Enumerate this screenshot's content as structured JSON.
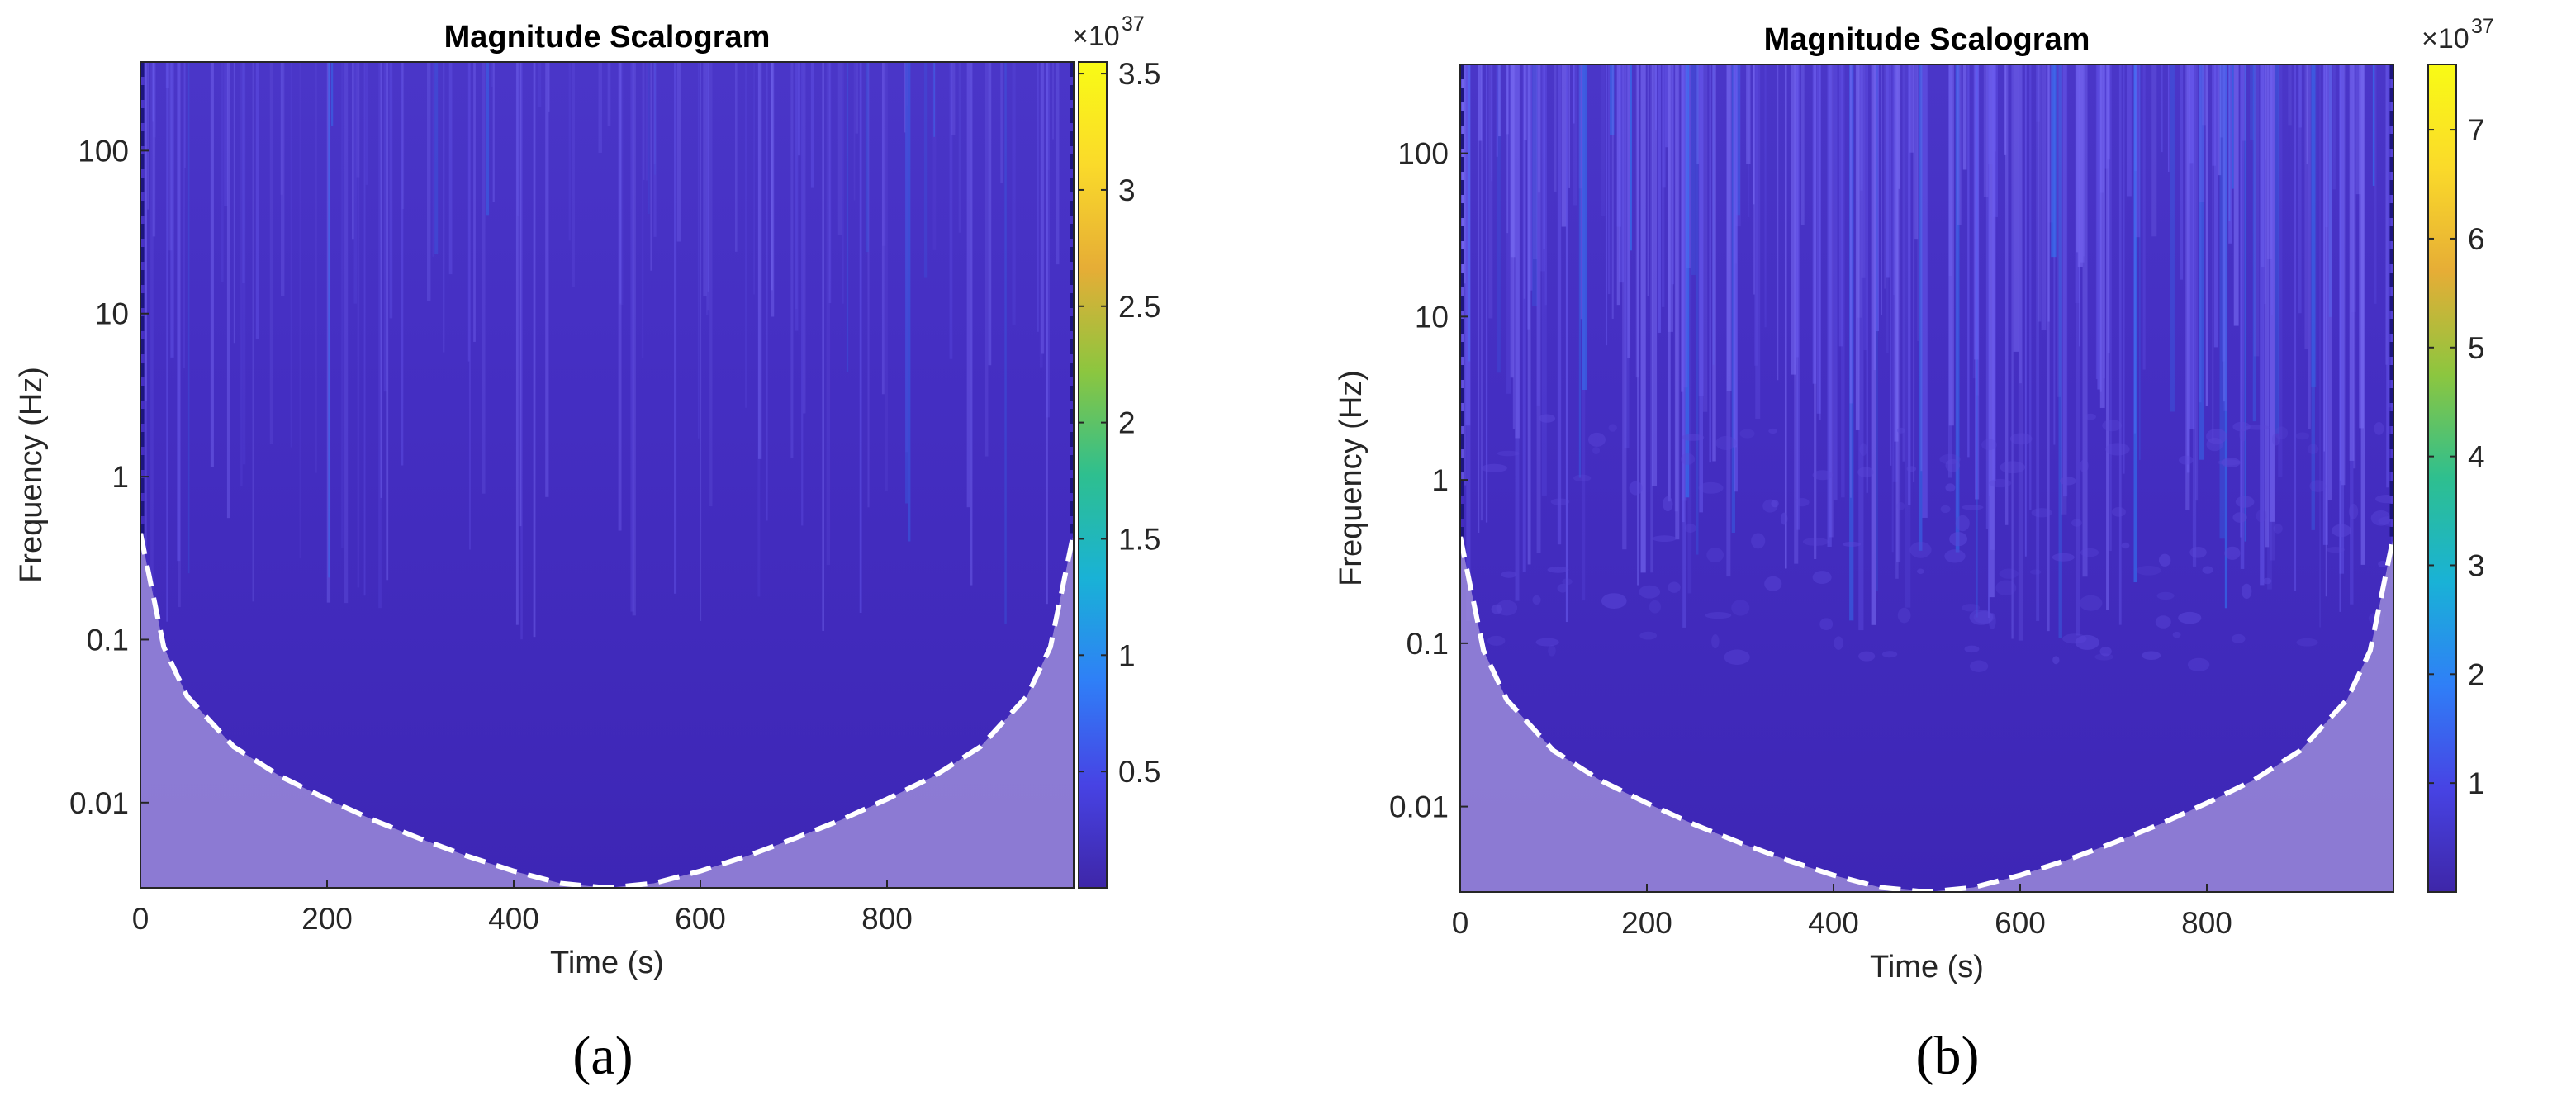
{
  "figure": {
    "background": "#ffffff"
  },
  "colormap": [
    "#3e26a8",
    "#4743e4",
    "#2f7ff7",
    "#19b2d6",
    "#2ebf8f",
    "#8cc63f",
    "#e6ad36",
    "#fada2a",
    "#f9fb15"
  ],
  "coi_color": "#ffffff",
  "chart_data": [
    {
      "type": "heatmap",
      "panel_label": "(a)",
      "title": "Magnitude Scalogram",
      "xlabel": "Time (s)",
      "ylabel": "Frequency (Hz)",
      "xlim": [
        0,
        1000
      ],
      "ylim": [
        0.003,
        350
      ],
      "yscale": "log",
      "xticks": [
        0,
        200,
        400,
        600,
        800
      ],
      "xtick_labels": [
        "0",
        "200",
        "400",
        "600",
        "800"
      ],
      "yticks": [
        0.01,
        0.1,
        1,
        10,
        100
      ],
      "ytick_labels": [
        "0.01",
        "0.1",
        "1",
        "10",
        "100"
      ],
      "colorbar": {
        "range": [
          0,
          3.55
        ],
        "ticks": [
          0.5,
          1,
          1.5,
          2,
          2.5,
          3,
          3.5
        ],
        "tick_labels": [
          "0.5",
          "1",
          "1.5",
          "2",
          "2.5",
          "3",
          "3.5"
        ],
        "multiplier_base": "×10",
        "multiplier_exp": "37"
      },
      "activity": 0.35,
      "cone_of_influence": {
        "time": [
          0,
          25,
          50,
          100,
          150,
          200,
          250,
          300,
          350,
          400,
          450,
          500,
          550,
          600,
          650,
          700,
          750,
          800,
          850,
          900,
          950,
          975,
          1000
        ],
        "frequency": [
          0.45,
          0.09,
          0.045,
          0.022,
          0.0145,
          0.0105,
          0.0078,
          0.006,
          0.0047,
          0.0038,
          0.0032,
          0.003,
          0.0032,
          0.0038,
          0.0047,
          0.006,
          0.0078,
          0.0105,
          0.0145,
          0.022,
          0.045,
          0.09,
          0.45
        ]
      }
    },
    {
      "type": "heatmap",
      "panel_label": "(b)",
      "title": "Magnitude Scalogram",
      "xlabel": "Time (s)",
      "ylabel": "Frequency (Hz)",
      "xlim": [
        0,
        1000
      ],
      "ylim": [
        0.003,
        350
      ],
      "yscale": "log",
      "xticks": [
        0,
        200,
        400,
        600,
        800
      ],
      "xtick_labels": [
        "0",
        "200",
        "400",
        "600",
        "800"
      ],
      "yticks": [
        0.01,
        0.1,
        1,
        10,
        100
      ],
      "ytick_labels": [
        "0.01",
        "0.1",
        "1",
        "10",
        "100"
      ],
      "colorbar": {
        "range": [
          0,
          7.6
        ],
        "ticks": [
          1,
          2,
          3,
          4,
          5,
          6,
          7
        ],
        "tick_labels": [
          "1",
          "2",
          "3",
          "4",
          "5",
          "6",
          "7"
        ],
        "multiplier_base": "×10",
        "multiplier_exp": "37"
      },
      "activity": 1.0,
      "cone_of_influence": {
        "time": [
          0,
          25,
          50,
          100,
          150,
          200,
          250,
          300,
          350,
          400,
          450,
          500,
          550,
          600,
          650,
          700,
          750,
          800,
          850,
          900,
          950,
          975,
          1000
        ],
        "frequency": [
          0.45,
          0.09,
          0.045,
          0.022,
          0.0145,
          0.0105,
          0.0078,
          0.006,
          0.0047,
          0.0038,
          0.0032,
          0.003,
          0.0032,
          0.0038,
          0.0047,
          0.006,
          0.0078,
          0.0105,
          0.0145,
          0.022,
          0.045,
          0.09,
          0.45
        ]
      }
    }
  ]
}
